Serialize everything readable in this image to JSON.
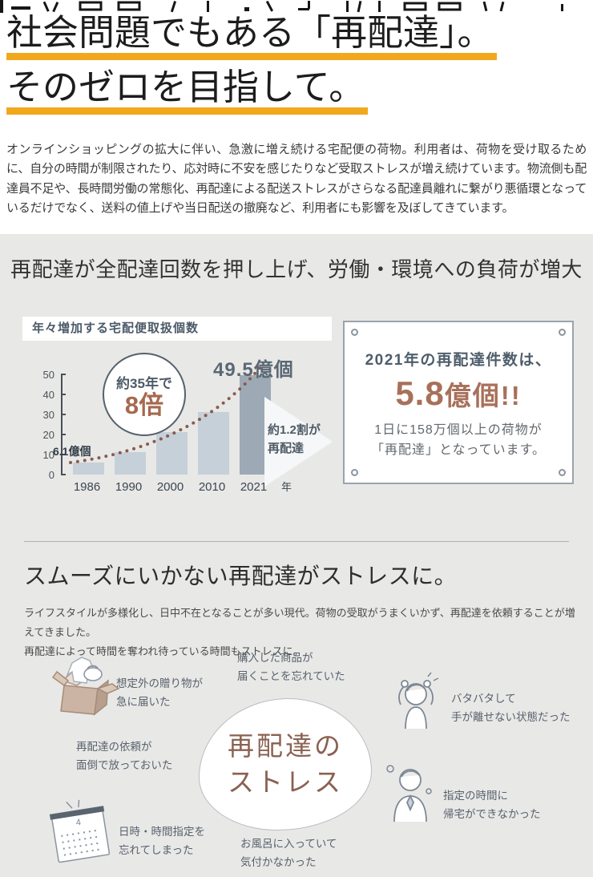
{
  "theme": {
    "accent_underline": "#f2a81d",
    "section_bg": "#e8e8e7",
    "slate": "#4e5d6b",
    "brown": "#a8705a"
  },
  "hero": {
    "title_line1": "社会問題でもある「再配達」。",
    "title_line2": "そのゼロを目指して。",
    "intro": "オンラインショッピングの拡大に伴い、急激に増え続ける宅配便の荷物。利用者は、荷物を受け取るために、自分の時間が制限されたり、応対時に不安を感じたりなど受取ストレスが増え続けています。物流側も配達員不足や、長時間労働の常態化、再配達による配送ストレスがさらなる配達員離れに繋がり悪循環となっているだけでなく、送料の値上げや当日配送の撤廃など、利用者にも影響を及ぼしてきています。"
  },
  "stats_section": {
    "heading": "再配達が全配達回数を押し上げ、労働・環境への負荷が増大",
    "callout": {
      "line1": "2021年の再配達件数は、",
      "big_number": "5.8",
      "big_suffix": "億個!!",
      "desc": "1日に158万個以上の荷物が\n「再配達」となっています。"
    }
  },
  "chart_data": {
    "type": "bar",
    "title": "年々増加する宅配便取扱個数",
    "categories": [
      "1986",
      "1990",
      "2000",
      "2010",
      "2021"
    ],
    "values": [
      6.1,
      11,
      21,
      31,
      49.5
    ],
    "x_unit": "年",
    "ylabel": "",
    "xlabel": "",
    "ylim": [
      0,
      50
    ],
    "yticks": [
      0,
      10,
      20,
      30,
      40,
      50
    ],
    "grid": false,
    "legend_position": "none",
    "bar_color": "#c6d0d8",
    "bar_color_last": "#9daab5",
    "annotations": {
      "circle_line1": "約35年で",
      "circle_line2": "8倍",
      "peak_label": "49.5億個",
      "first_label": "6.1億個",
      "arrow_label": "約1.2割が\n再配達"
    }
  },
  "stress_section": {
    "heading": "スムーズにいかない再配達がストレスに。",
    "intro": "ライフスタイルが多様化し、日中不在となることが多い現代。荷物の受取がうまくいかず、再配達を依頼することが増えてきました。\n再配達によって時間を奪われ待っている時間もストレスに。",
    "center_label": "再配達の\nストレス",
    "items": [
      {
        "icon": "gift-box-icon",
        "text": "想定外の贈り物が\n急に届いた"
      },
      {
        "icon": null,
        "text": "購入した商品が\n届くことを忘れていた"
      },
      {
        "icon": null,
        "text": "再配達の依頼が\n面倒で放っておいた"
      },
      {
        "icon": "flustered-person-icon",
        "text": "バタバタして\n手が離せない状態だった"
      },
      {
        "icon": "waiting-person-icon",
        "text": "指定の時間に\n帰宅ができなかった"
      },
      {
        "icon": "calendar-icon",
        "text": "日時・時間指定を\n忘れてしまった"
      },
      {
        "icon": null,
        "text": "お風呂に入っていて\n気付かなかった"
      }
    ]
  }
}
